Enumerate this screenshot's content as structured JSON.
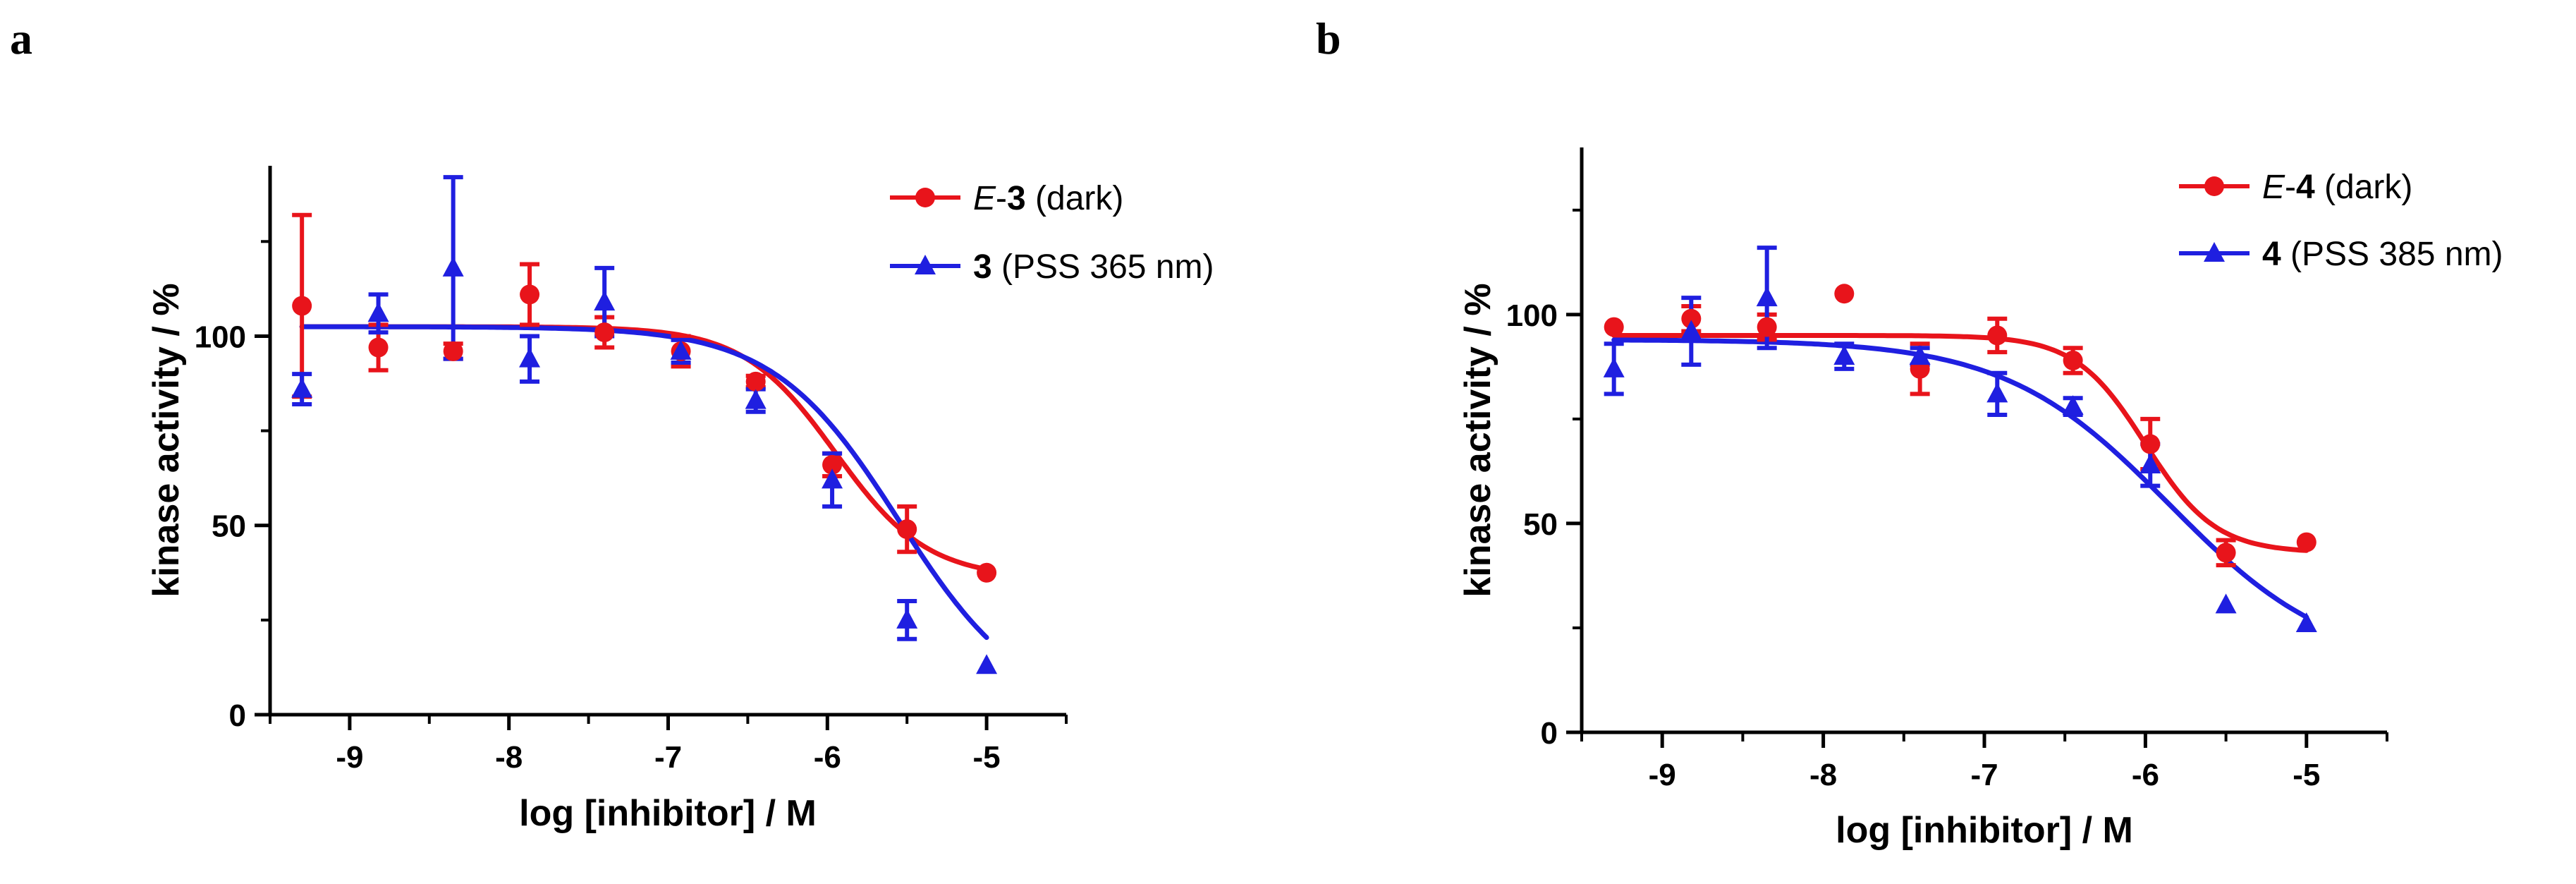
{
  "chart_data": [
    {
      "panel": "a",
      "type": "scatter",
      "xlabel": "log [inhibitor] / M",
      "ylabel": "kinase activity / %",
      "xlim": [
        -9.5,
        -4.5
      ],
      "ylim": [
        0,
        145
      ],
      "xticks": [
        -9,
        -8,
        -7,
        -6,
        -5
      ],
      "xtick_labels": [
        "-9",
        "-8",
        "-7",
        "-6",
        "-5"
      ],
      "yticks": [
        0,
        50,
        100
      ],
      "ytick_labels": [
        "0",
        "50",
        "100"
      ],
      "yminor": [
        25,
        75,
        125
      ],
      "series": [
        {
          "name": "E-3 (dark)",
          "name_italic": "E",
          "name_bold": "3",
          "name_rest": " (dark)",
          "color": "#e8141b",
          "marker": "circle",
          "x": [
            -9.3,
            -8.82,
            -8.35,
            -7.87,
            -7.4,
            -6.92,
            -6.45,
            -5.97,
            -5.5,
            -5.0
          ],
          "y": [
            108,
            97,
            96,
            111,
            101,
            96,
            88,
            66,
            49,
            37.5
          ],
          "err": [
            24,
            6,
            2,
            8,
            4,
            4,
            1.5,
            3,
            6,
            0
          ],
          "fit": {
            "top": 102.5,
            "bottom": 36,
            "logIC50": -5.95,
            "hill": 1.5
          }
        },
        {
          "name": "3 (PSS 365 nm)",
          "name_italic": "",
          "name_bold": "3",
          "name_rest": " (PSS 365 nm)",
          "color": "#1f1fe0",
          "marker": "triangle",
          "x": [
            -9.3,
            -8.82,
            -8.35,
            -7.87,
            -7.4,
            -6.92,
            -6.45,
            -5.97,
            -5.5,
            -5.0
          ],
          "y": [
            86,
            106,
            118,
            94,
            109,
            96,
            83,
            62,
            25,
            13
          ],
          "err": [
            4,
            5,
            24,
            6,
            9,
            3,
            3,
            7,
            5,
            0
          ],
          "fit": {
            "top": 102.5,
            "bottom": 0,
            "logIC50": -5.55,
            "hill": 1.1
          }
        }
      ]
    },
    {
      "panel": "b",
      "type": "scatter",
      "xlabel": "log [inhibitor] / M",
      "ylabel": "kinase activity / %",
      "xlim": [
        -9.5,
        -4.5
      ],
      "ylim": [
        0,
        140
      ],
      "xticks": [
        -9,
        -8,
        -7,
        -6,
        -5
      ],
      "xtick_labels": [
        "-9",
        "-8",
        "-7",
        "-6",
        "-5"
      ],
      "yticks": [
        0,
        50,
        100
      ],
      "ytick_labels": [
        "0",
        "50",
        "100"
      ],
      "yminor": [
        25,
        75,
        125
      ],
      "series": [
        {
          "name": "E-4 (dark)",
          "name_italic": "E",
          "name_bold": "4",
          "name_rest": " (dark)",
          "color": "#e8141b",
          "marker": "circle",
          "x": [
            -9.3,
            -8.82,
            -8.35,
            -7.87,
            -7.4,
            -6.92,
            -6.45,
            -5.97,
            -5.5,
            -5.0
          ],
          "y": [
            97,
            99,
            97,
            105,
            87,
            95,
            89,
            69,
            43,
            45.5
          ],
          "err": [
            0,
            3,
            3,
            0,
            6,
            4,
            3,
            6,
            3,
            0
          ],
          "fit": {
            "top": 95,
            "bottom": 43,
            "logIC50": -6.0,
            "hill": 2.0
          }
        },
        {
          "name": "4 (PSS 385 nm)",
          "name_italic": "",
          "name_bold": "4",
          "name_rest": " (PSS 385 nm)",
          "color": "#1f1fe0",
          "marker": "triangle",
          "x": [
            -9.3,
            -8.82,
            -8.35,
            -7.87,
            -7.4,
            -6.92,
            -6.45,
            -5.97,
            -5.5,
            -5.0
          ],
          "y": [
            87,
            96,
            104,
            90,
            90,
            81,
            78,
            64,
            30.5,
            26
          ],
          "err": [
            6,
            8,
            12,
            3,
            2,
            5,
            2,
            5,
            0,
            0
          ],
          "fit": {
            "top": 94,
            "bottom": 15,
            "logIC50": -5.85,
            "hill": 0.85
          }
        }
      ]
    }
  ]
}
